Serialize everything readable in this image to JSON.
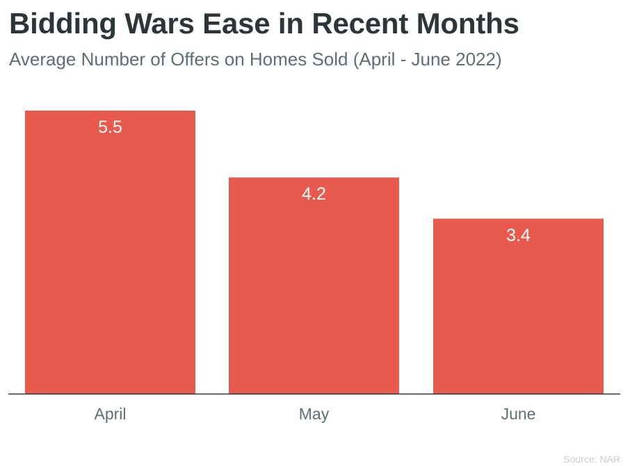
{
  "title": "Bidding Wars Ease in Recent Months",
  "subtitle": "Average Number of Offers on Homes Sold (April - June 2022)",
  "source": "Source: NAR",
  "colors": {
    "bar": "#e95a4e",
    "bar_label": "#ffffff",
    "axis_line": "#2d3538",
    "tick_label": "#5f6e73"
  },
  "chart_data": {
    "type": "bar",
    "categories": [
      "April",
      "May",
      "June"
    ],
    "values": [
      5.5,
      4.2,
      3.4
    ],
    "data_labels": [
      "5.5",
      "4.2",
      "3.4"
    ],
    "title": "Bidding Wars Ease in Recent Months",
    "subtitle": "Average Number of Offers on Homes Sold (April - June 2022)",
    "xlabel": "",
    "ylabel": "",
    "ylim": [
      0,
      5.5
    ],
    "grid": false,
    "legend": "none"
  }
}
